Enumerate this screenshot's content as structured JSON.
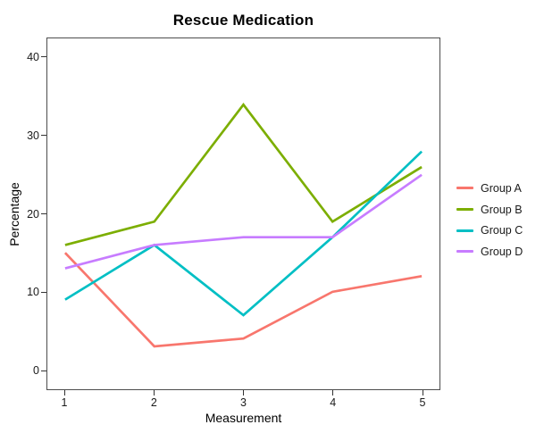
{
  "chart_data": {
    "type": "line",
    "title": "Rescue Medication",
    "xlabel": "Measurement",
    "ylabel": "Percentage",
    "x": [
      1,
      2,
      3,
      4,
      5
    ],
    "xticks": {
      "values": [
        1,
        2,
        3,
        4,
        5
      ],
      "labels": [
        "1",
        "2",
        "3",
        "4",
        "5"
      ]
    },
    "yticks": {
      "values": [
        0,
        10,
        20,
        30,
        40
      ],
      "labels": [
        "0",
        "10",
        "20",
        "30",
        "40"
      ]
    },
    "xlim": [
      0.8,
      5.2
    ],
    "ylim": [
      -2.5,
      42.5
    ],
    "grid": false,
    "legend_position": "right",
    "panel_border_color": "#4d4d4d",
    "series": [
      {
        "name": "Group A",
        "color": "#F8766D",
        "values": [
          15,
          3,
          4,
          10,
          12
        ]
      },
      {
        "name": "Group B",
        "color": "#7CAE00",
        "values": [
          16,
          19,
          34,
          19,
          26
        ]
      },
      {
        "name": "Group C",
        "color": "#00BFC4",
        "values": [
          9,
          16,
          7,
          17,
          28
        ]
      },
      {
        "name": "Group D",
        "color": "#C77CFF",
        "values": [
          13,
          16,
          17,
          17,
          25
        ]
      }
    ]
  }
}
